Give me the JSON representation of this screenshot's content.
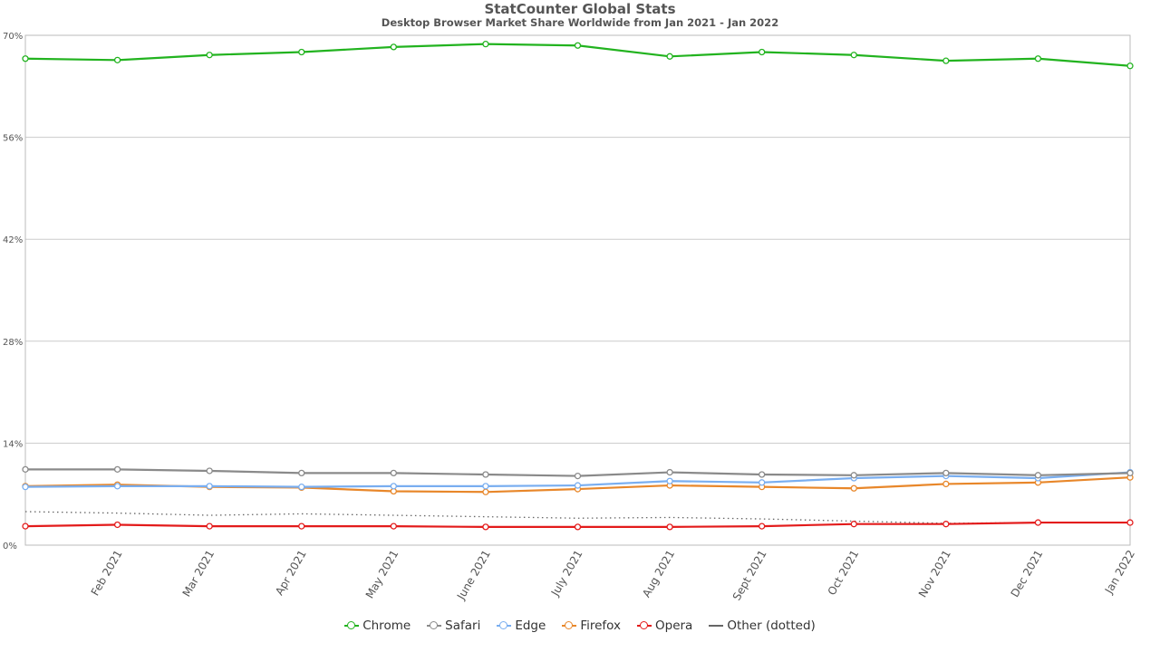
{
  "chart_title": "StatCounter Global Stats",
  "chart_subtitle": "Desktop Browser Market Share Worldwide from Jan 2021 - Jan 2022",
  "chart_data": {
    "type": "line",
    "title": "StatCounter Global Stats",
    "subtitle": "Desktop Browser Market Share Worldwide from Jan 2021 - Jan 2022",
    "xlabel": "",
    "ylabel": "",
    "categories": [
      "Jan 2021",
      "Feb 2021",
      "Mar 2021",
      "Apr 2021",
      "May 2021",
      "June 2021",
      "July 2021",
      "Aug 2021",
      "Sept 2021",
      "Oct 2021",
      "Nov 2021",
      "Dec 2021",
      "Jan 2022"
    ],
    "x_tick_labels": [
      "Feb 2021",
      "Mar 2021",
      "Apr 2021",
      "May 2021",
      "June 2021",
      "July 2021",
      "Aug 2021",
      "Sept 2021",
      "Oct 2021",
      "Nov 2021",
      "Dec 2021",
      "Jan 2022"
    ],
    "ylim": [
      0,
      70
    ],
    "y_ticks": [
      0,
      14,
      28,
      42,
      56,
      70
    ],
    "y_tick_labels": [
      "0%",
      "14%",
      "28%",
      "42%",
      "56%",
      "70%"
    ],
    "grid": true,
    "legend_position": "bottom-center",
    "series": [
      {
        "name": "Chrome",
        "color": "#22b31f",
        "style": "solid",
        "markers": true,
        "values": [
          66.8,
          66.6,
          67.3,
          67.7,
          68.4,
          68.8,
          68.6,
          67.1,
          67.7,
          67.3,
          66.5,
          66.8,
          65.8
        ]
      },
      {
        "name": "Safari",
        "color": "#8a8a8a",
        "style": "solid",
        "markers": true,
        "values": [
          10.4,
          10.4,
          10.2,
          9.9,
          9.9,
          9.7,
          9.5,
          10.0,
          9.7,
          9.6,
          9.9,
          9.6,
          9.9
        ]
      },
      {
        "name": "Edge",
        "color": "#79aef0",
        "style": "solid",
        "markers": true,
        "values": [
          8.0,
          8.1,
          8.1,
          8.0,
          8.1,
          8.1,
          8.2,
          8.8,
          8.6,
          9.2,
          9.5,
          9.2,
          10.0
        ]
      },
      {
        "name": "Firefox",
        "color": "#e8872a",
        "style": "solid",
        "markers": true,
        "values": [
          8.1,
          8.3,
          8.0,
          7.9,
          7.4,
          7.3,
          7.7,
          8.2,
          8.0,
          7.8,
          8.4,
          8.6,
          9.3
        ]
      },
      {
        "name": "Opera",
        "color": "#e31b1b",
        "style": "solid",
        "markers": true,
        "values": [
          2.6,
          2.8,
          2.6,
          2.6,
          2.6,
          2.5,
          2.5,
          2.5,
          2.6,
          2.9,
          2.9,
          3.1,
          3.1
        ]
      },
      {
        "name": "Other (dotted)",
        "color": "#666666",
        "style": "dotted",
        "markers": false,
        "values": [
          4.6,
          4.4,
          4.1,
          4.3,
          4.1,
          3.9,
          3.7,
          3.8,
          3.6,
          3.3,
          3.0,
          3.1,
          3.1
        ]
      }
    ]
  }
}
